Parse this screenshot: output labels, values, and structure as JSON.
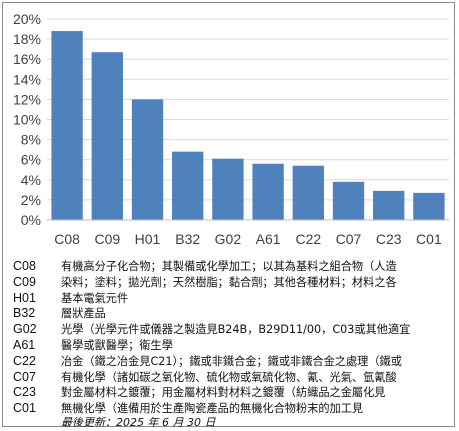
{
  "chart_data": {
    "type": "bar",
    "categories": [
      "C08",
      "C09",
      "H01",
      "B32",
      "G02",
      "A61",
      "C22",
      "C07",
      "C23",
      "C01"
    ],
    "values": [
      0.188,
      0.167,
      0.12,
      0.068,
      0.061,
      0.056,
      0.054,
      0.038,
      0.029,
      0.027
    ],
    "y_ticks": [
      "0%",
      "2%",
      "4%",
      "6%",
      "8%",
      "10%",
      "12%",
      "14%",
      "16%",
      "18%",
      "20%"
    ],
    "ylim": [
      0,
      0.2
    ],
    "bar_color": "#4f81bd",
    "grid": true,
    "gridline_color": "#d9d9d9"
  },
  "legend": [
    {
      "code": "C08",
      "text": "有機高分子化合物；其製備或化學加工；以其為基料之組合物（人造"
    },
    {
      "code": "C09",
      "text": "染料；塗料；拋光劑；天然樹脂；黏合劑；其他各種材料；材料之各"
    },
    {
      "code": "H01",
      "text": "基本電氣元件"
    },
    {
      "code": "B32",
      "text": "層狀產品"
    },
    {
      "code": "G02",
      "text": "光學（光學元件或儀器之製造見B24B，B29D11/00，C03或其他適宜"
    },
    {
      "code": "A61",
      "text": "醫學或獸醫學；衛生學"
    },
    {
      "code": "C22",
      "text": "冶金（鐵之冶金見C21）；鐵或非鐵合金；鐵或非鐵合金之處理（鐵或"
    },
    {
      "code": "C07",
      "text": "有機化學（諸如碳之氧化物、硫化物或氧硫化物、氰、光氣、氫氰酸"
    },
    {
      "code": "C23",
      "text": "對金屬材料之鍍覆；用金屬材料對材料之鍍覆（紡織品之金屬化見"
    },
    {
      "code": "C01",
      "text": "無機化學（進備用於生產陶瓷產品的無機化合物粉末的加工見"
    }
  ],
  "footer": "最後更新：2025 年 6 月 30 日"
}
